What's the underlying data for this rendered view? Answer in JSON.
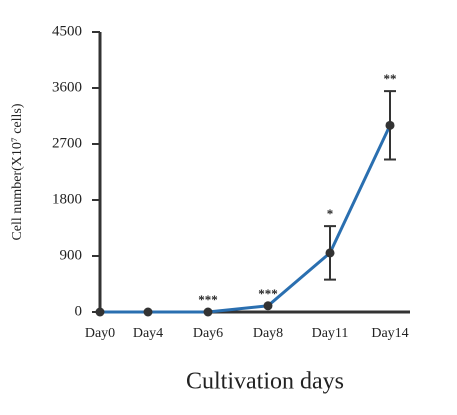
{
  "chart_data": {
    "type": "line",
    "x_label": "Cultivation days",
    "y_label": "Cell number(X10⁷ cells)",
    "categories": [
      "Day0",
      "Day4",
      "Day6",
      "Day8",
      "Day11",
      "Day14"
    ],
    "series": [
      {
        "name": "Cell number",
        "color": "#2a6fb0",
        "values": [
          0,
          0,
          0,
          100,
          950,
          3000
        ],
        "errors": [
          null,
          null,
          null,
          null,
          430,
          550
        ]
      }
    ],
    "significance": [
      null,
      null,
      "***",
      "***",
      "*",
      "**"
    ],
    "ylim": [
      0,
      4500
    ],
    "yticks": [
      0,
      900,
      1800,
      2700,
      3600,
      4500
    ]
  }
}
